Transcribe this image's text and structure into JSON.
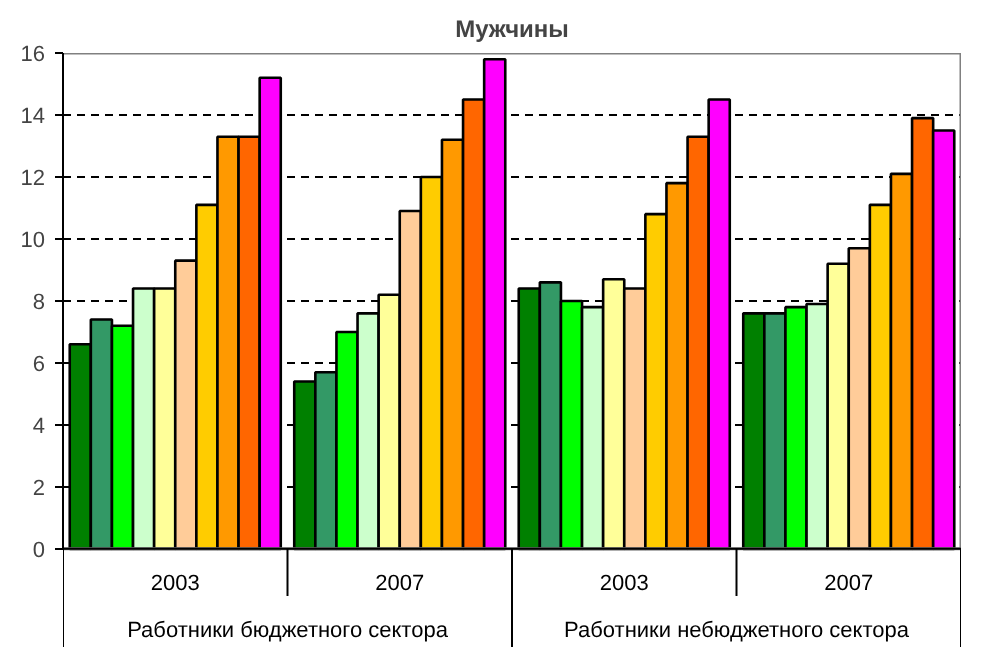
{
  "chart_data": {
    "type": "bar",
    "title": "Мужчины",
    "categories": [
      "2003",
      "2007",
      "2003",
      "2007"
    ],
    "annotations": [
      "Работники бюджетного сектора",
      "Работники небюджетного сектора"
    ],
    "series": [
      {
        "color": "#008000",
        "values": [
          6.6,
          5.4,
          8.4,
          7.6
        ]
      },
      {
        "color": "#339966",
        "values": [
          7.4,
          5.7,
          8.6,
          7.6
        ]
      },
      {
        "color": "#00ff00",
        "values": [
          7.2,
          7.0,
          8.0,
          7.8
        ]
      },
      {
        "color": "#ccffcc",
        "values": [
          8.4,
          7.6,
          7.8,
          7.9
        ]
      },
      {
        "color": "#ffff99",
        "values": [
          8.4,
          8.2,
          8.7,
          9.2
        ]
      },
      {
        "color": "#ffcc99",
        "values": [
          9.3,
          10.9,
          8.4,
          9.7
        ]
      },
      {
        "color": "#ffcc00",
        "values": [
          11.1,
          12.0,
          10.8,
          11.1
        ]
      },
      {
        "color": "#ff9900",
        "values": [
          13.3,
          13.2,
          11.8,
          12.1
        ]
      },
      {
        "color": "#ff6600",
        "values": [
          13.3,
          14.5,
          13.3,
          13.9
        ]
      },
      {
        "color": "#ff00ff",
        "values": [
          15.2,
          15.8,
          14.5,
          13.5
        ]
      }
    ],
    "ylim": [
      0,
      16
    ],
    "yticks": [
      0,
      2,
      4,
      6,
      8,
      10,
      12,
      14,
      16
    ],
    "grid": "y"
  }
}
